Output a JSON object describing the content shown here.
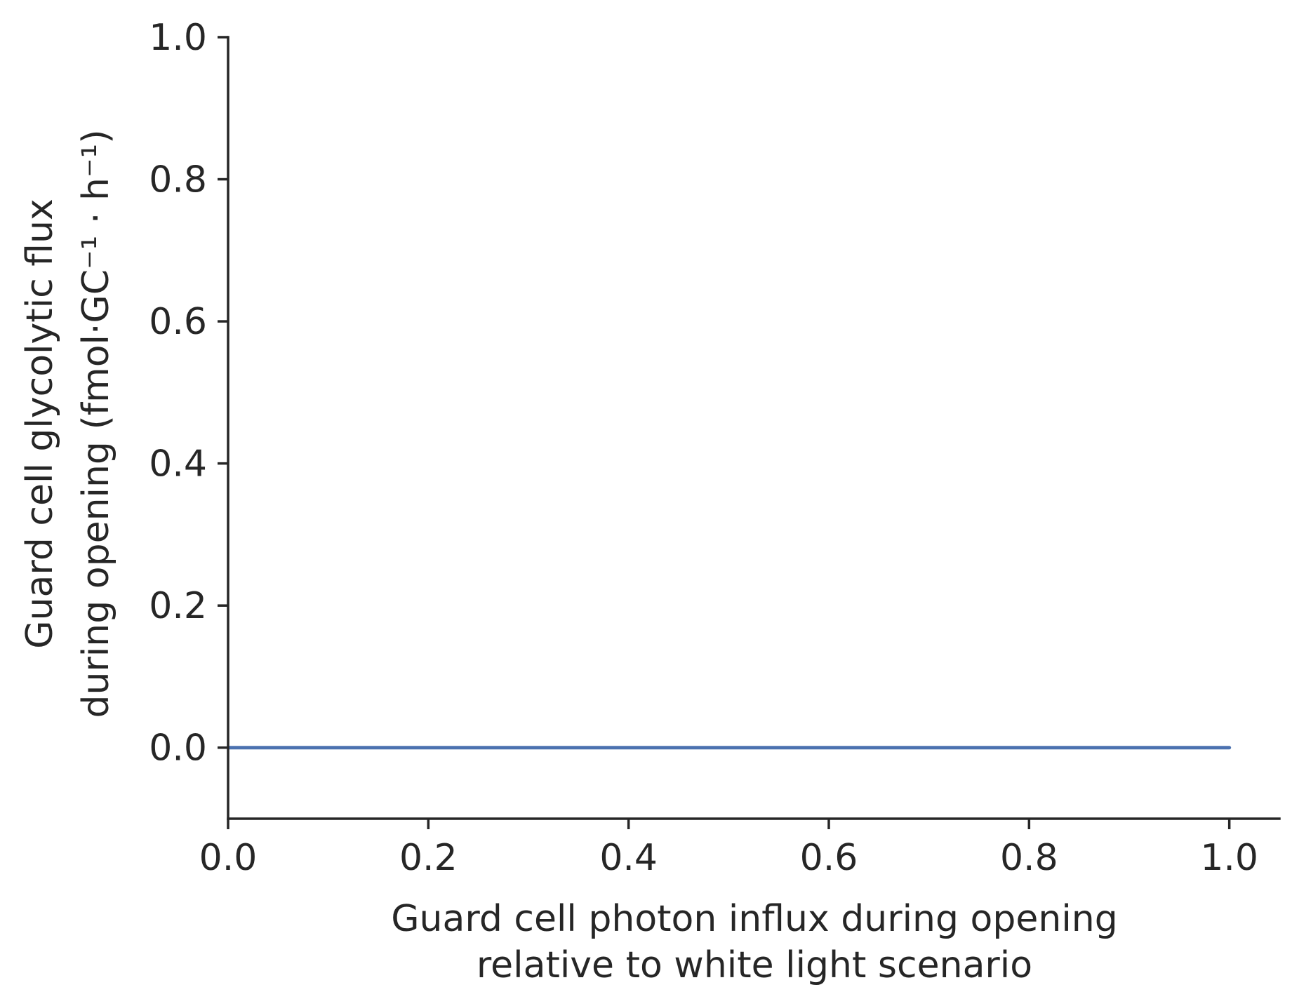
{
  "chart_data": {
    "type": "line",
    "title": "",
    "xlabel": [
      "Guard cell photon influx during opening",
      "relative to white light scenario"
    ],
    "ylabel": [
      "Guard cell glycolytic flux",
      "during opening (fmol·GC⁻¹ · h⁻¹)"
    ],
    "xlim": [
      0.0,
      1.05
    ],
    "ylim": [
      -0.1,
      1.0
    ],
    "x_ticks": [
      "0.0",
      "0.2",
      "0.4",
      "0.6",
      "0.8",
      "1.0"
    ],
    "y_ticks": [
      "0.0",
      "0.2",
      "0.4",
      "0.6",
      "0.8",
      "1.0"
    ],
    "grid": false,
    "series": [
      {
        "color": "#4c72b0",
        "x": [
          0.0,
          0.1,
          0.2,
          0.3,
          0.4,
          0.5,
          0.6,
          0.7,
          0.8,
          0.9,
          1.0
        ],
        "y": [
          0.0,
          0.0,
          0.0,
          0.0,
          0.0,
          0.0,
          0.0,
          0.0,
          0.0,
          0.0,
          0.0
        ]
      }
    ]
  }
}
